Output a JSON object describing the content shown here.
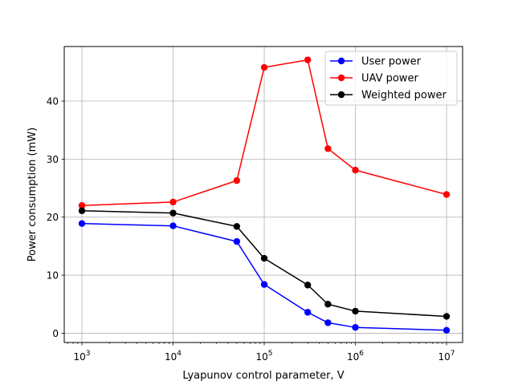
{
  "chart_data": {
    "type": "line",
    "title": "",
    "xlabel": "Lyapunov control parameter, V",
    "ylabel": "Power consumption (mW)",
    "x_scale": "log",
    "x": [
      1000,
      10000,
      50000,
      100000,
      300000,
      500000,
      1000000,
      10000000
    ],
    "xlim": [
      640,
      15000000
    ],
    "ylim": [
      -1.6,
      49.4
    ],
    "x_ticks": [
      1000,
      10000,
      100000,
      1000000,
      10000000
    ],
    "x_tick_labels": [
      {
        "base": "10",
        "exp": "3"
      },
      {
        "base": "10",
        "exp": "4"
      },
      {
        "base": "10",
        "exp": "5"
      },
      {
        "base": "10",
        "exp": "6"
      },
      {
        "base": "10",
        "exp": "7"
      }
    ],
    "y_ticks": [
      0,
      10,
      20,
      30,
      40
    ],
    "y_tick_labels": [
      "0",
      "10",
      "20",
      "30",
      "40"
    ],
    "grid": true,
    "legend_position": "top-right",
    "series": [
      {
        "name": "User power",
        "color": "#0000ff",
        "values": [
          18.9,
          18.5,
          15.8,
          8.4,
          3.6,
          1.8,
          1.0,
          0.5
        ]
      },
      {
        "name": "UAV power",
        "color": "#ff0000",
        "values": [
          22.0,
          22.6,
          26.3,
          45.8,
          47.1,
          31.8,
          28.1,
          23.9
        ]
      },
      {
        "name": "Weighted power",
        "color": "#000000",
        "values": [
          21.1,
          20.7,
          18.4,
          12.9,
          8.3,
          5.0,
          3.8,
          2.9
        ]
      }
    ]
  }
}
